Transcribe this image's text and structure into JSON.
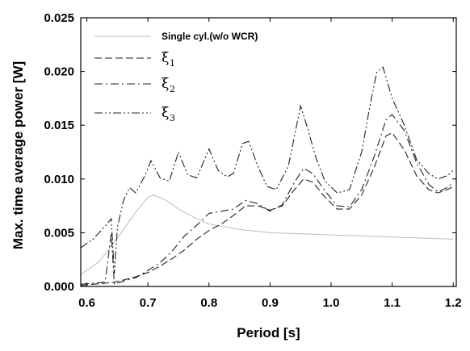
{
  "chart_data": {
    "type": "line",
    "title": "",
    "xlabel": "Period [s]",
    "ylabel": "Max. time average power [W]",
    "xlim": [
      0.59,
      1.205
    ],
    "ylim": [
      0,
      0.025
    ],
    "xticks": [
      0.6,
      0.7,
      0.8,
      0.9,
      1.0,
      1.1,
      1.2
    ],
    "xtick_labels": [
      "0.6",
      "0.7",
      "0.8",
      "0.9",
      "1.0",
      "1.1",
      "1.2"
    ],
    "yticks": [
      0,
      0.005,
      0.01,
      0.015,
      0.02,
      0.025
    ],
    "ytick_labels": [
      "0.000",
      "0.005",
      "0.010",
      "0.015",
      "0.020",
      "0.025"
    ],
    "grid": false,
    "legend_position": "top-left",
    "series": [
      {
        "name": "Single cyl.(w/o WCR)",
        "color": "#bbbbbb",
        "style": "solid",
        "x": [
          0.59,
          0.62,
          0.65,
          0.68,
          0.7,
          0.71,
          0.73,
          0.75,
          0.78,
          0.8,
          0.85,
          0.9,
          0.95,
          1.0,
          1.05,
          1.1,
          1.15,
          1.2
        ],
        "y": [
          0.0011,
          0.0023,
          0.0045,
          0.0069,
          0.0083,
          0.0085,
          0.008,
          0.0072,
          0.0063,
          0.0058,
          0.0053,
          0.005,
          0.0049,
          0.0048,
          0.0047,
          0.0046,
          0.0045,
          0.0044
        ]
      },
      {
        "name_symbol": "ξ",
        "name_sub": "1",
        "color": "#222222",
        "style": "dashed",
        "x": [
          0.59,
          0.61,
          0.63,
          0.645,
          0.66,
          0.68,
          0.7,
          0.72,
          0.74,
          0.76,
          0.78,
          0.8,
          0.82,
          0.84,
          0.86,
          0.88,
          0.9,
          0.92,
          0.94,
          0.955,
          0.97,
          0.99,
          1.01,
          1.03,
          1.05,
          1.07,
          1.09,
          1.1,
          1.12,
          1.14,
          1.16,
          1.175,
          1.19,
          1.2
        ],
        "y": [
          0.0001,
          0.0002,
          0.0003,
          0.0004,
          0.0006,
          0.0009,
          0.0013,
          0.0019,
          0.0026,
          0.0034,
          0.0044,
          0.0052,
          0.0058,
          0.0066,
          0.0075,
          0.0075,
          0.0071,
          0.0075,
          0.009,
          0.01,
          0.0097,
          0.0083,
          0.0072,
          0.0072,
          0.0085,
          0.011,
          0.014,
          0.0143,
          0.0127,
          0.0103,
          0.009,
          0.0087,
          0.009,
          0.0093
        ]
      },
      {
        "name_symbol": "ξ",
        "name_sub": "2",
        "color": "#222222",
        "style": "dashdot",
        "x": [
          0.59,
          0.61,
          0.63,
          0.64,
          0.645,
          0.65,
          0.66,
          0.68,
          0.7,
          0.72,
          0.74,
          0.76,
          0.78,
          0.8,
          0.82,
          0.84,
          0.86,
          0.88,
          0.9,
          0.92,
          0.94,
          0.955,
          0.97,
          0.99,
          1.01,
          1.03,
          1.05,
          1.07,
          1.09,
          1.1,
          1.12,
          1.14,
          1.16,
          1.175,
          1.19,
          1.2
        ],
        "y": [
          0.0002,
          0.0003,
          0.0004,
          0.005,
          0.0002,
          0.0003,
          0.0005,
          0.0008,
          0.0015,
          0.0022,
          0.0033,
          0.0047,
          0.0057,
          0.0068,
          0.007,
          0.0072,
          0.008,
          0.0077,
          0.007,
          0.0076,
          0.0097,
          0.011,
          0.0105,
          0.0089,
          0.0075,
          0.0074,
          0.009,
          0.012,
          0.0155,
          0.016,
          0.0145,
          0.0115,
          0.0095,
          0.0088,
          0.0092,
          0.0097
        ]
      },
      {
        "name_symbol": "ξ",
        "name_sub": "3",
        "color": "#222222",
        "style": "dashdotdot",
        "x": [
          0.59,
          0.61,
          0.63,
          0.64,
          0.645,
          0.65,
          0.66,
          0.67,
          0.68,
          0.695,
          0.705,
          0.72,
          0.735,
          0.75,
          0.765,
          0.78,
          0.8,
          0.815,
          0.83,
          0.84,
          0.855,
          0.865,
          0.88,
          0.895,
          0.91,
          0.93,
          0.95,
          0.96,
          0.975,
          0.99,
          1.01,
          1.03,
          1.05,
          1.065,
          1.075,
          1.085,
          1.1,
          1.12,
          1.14,
          1.16,
          1.175,
          1.19,
          1.2
        ],
        "y": [
          0.0036,
          0.0044,
          0.0056,
          0.0063,
          0.0012,
          0.0055,
          0.008,
          0.0092,
          0.0087,
          0.0103,
          0.0117,
          0.0101,
          0.0098,
          0.0125,
          0.0104,
          0.0101,
          0.0128,
          0.0108,
          0.0102,
          0.0105,
          0.0133,
          0.0135,
          0.0112,
          0.0093,
          0.009,
          0.0112,
          0.0168,
          0.015,
          0.012,
          0.0098,
          0.0087,
          0.009,
          0.0125,
          0.0172,
          0.02,
          0.0204,
          0.0175,
          0.015,
          0.0118,
          0.0105,
          0.01,
          0.0103,
          0.0108
        ]
      }
    ]
  }
}
